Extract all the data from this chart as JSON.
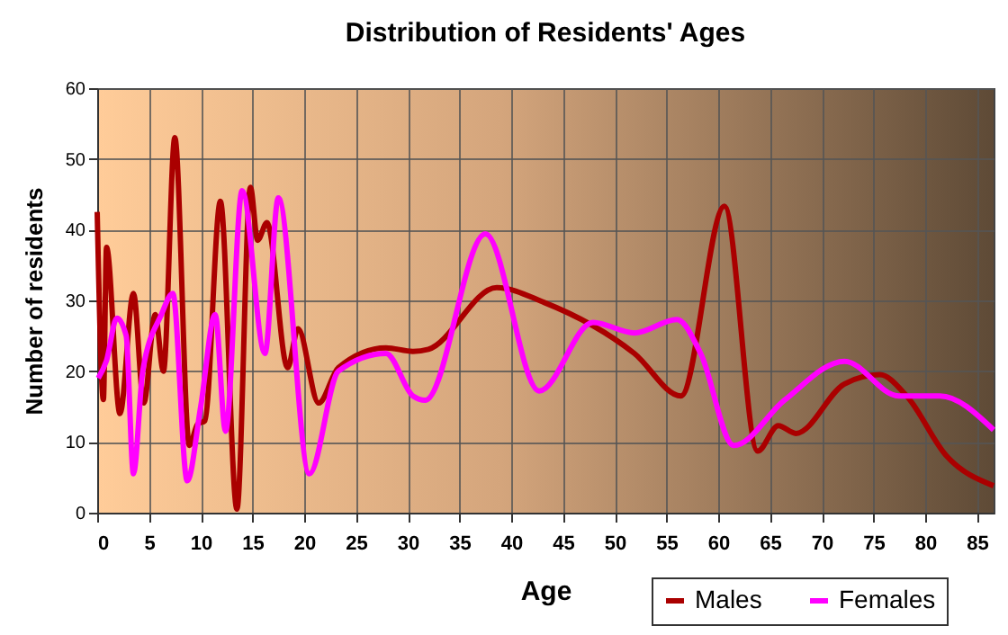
{
  "chart_data": {
    "type": "line",
    "title": "Distribution of Residents' Ages",
    "xlabel": "Age",
    "ylabel": "Number of residents",
    "xlim": [
      0,
      86.6
    ],
    "xticks": [
      0,
      5,
      10,
      15,
      20,
      25,
      30,
      35,
      40,
      45,
      50,
      55,
      60,
      65,
      70,
      75,
      80,
      85
    ],
    "ylim": [
      0,
      60
    ],
    "yticks": [
      0,
      10,
      20,
      30,
      40,
      50,
      60
    ],
    "grid": true,
    "legend": "bottom right",
    "series": [
      {
        "name": "Males",
        "color": "#aa0000",
        "x": [
          0,
          0.6,
          0.9,
          2.2,
          3.5,
          4.5,
          5.6,
          6.4,
          7.5,
          8.9,
          9.7,
          10.4,
          11.9,
          13.5,
          14.8,
          15.5,
          16.4,
          18.4,
          19.4,
          21.4,
          23.3,
          27.9,
          30.5,
          32,
          38.6,
          43.2,
          51.9,
          56.4,
          60.6,
          63.8,
          65.8,
          67.5,
          72.2,
          75.6,
          78.2,
          82,
          86.6
        ],
        "values": [
          42.5,
          16,
          37.5,
          14,
          31,
          15.5,
          28,
          20,
          53,
          9.5,
          12.5,
          13,
          44,
          0.5,
          46,
          38.5,
          41,
          20.5,
          26,
          15.5,
          20.5,
          23.3,
          22.8,
          23.1,
          31.8,
          29.7,
          22.5,
          16.5,
          43.3,
          8.7,
          12.3,
          11.2,
          18.2,
          19.5,
          16.5,
          8.1,
          3.8
        ]
      },
      {
        "name": "Females",
        "color": "#ff00ff",
        "x": [
          0.1,
          0.9,
          1.9,
          2.8,
          3.5,
          4.4,
          6.2,
          7.3,
          8.7,
          10,
          11.4,
          12.4,
          14,
          16.2,
          17.5,
          20.5,
          23.3,
          27.9,
          30.5,
          31.7,
          37.5,
          42.7,
          47.9,
          51.9,
          56,
          58.3,
          61.5,
          66.4,
          72.2,
          77.4,
          81.4,
          86.6
        ],
        "values": [
          19,
          21.5,
          27.5,
          25,
          5.5,
          20,
          28,
          31,
          4.5,
          15,
          28,
          11.5,
          45.5,
          22.5,
          44.5,
          5.5,
          20,
          22.5,
          16.5,
          15.9,
          39.4,
          17.2,
          26.9,
          25.4,
          27.3,
          22.5,
          9.5,
          15.9,
          21.4,
          16.5,
          16.5,
          11.7
        ]
      }
    ]
  }
}
